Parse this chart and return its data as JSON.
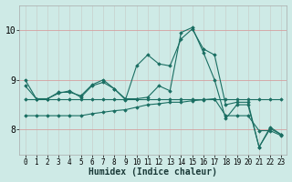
{
  "xlabel": "Humidex (Indice chaleur)",
  "background_color": "#ceeae6",
  "line_color": "#1a6e62",
  "grid_color": "#b8d8d4",
  "xlim": [
    -0.5,
    23.5
  ],
  "ylim": [
    7.5,
    10.5
  ],
  "yticks": [
    8,
    9,
    10
  ],
  "xticks": [
    0,
    1,
    2,
    3,
    4,
    5,
    6,
    7,
    8,
    9,
    10,
    11,
    12,
    13,
    14,
    15,
    16,
    17,
    18,
    19,
    20,
    21,
    22,
    23
  ],
  "series": [
    [
      9.0,
      8.62,
      8.62,
      8.75,
      8.75,
      8.68,
      8.9,
      9.0,
      8.82,
      8.62,
      8.62,
      8.65,
      8.88,
      8.78,
      9.95,
      10.05,
      9.55,
      9.0,
      8.22,
      8.5,
      8.5,
      7.65,
      8.05,
      7.9
    ],
    [
      8.88,
      8.62,
      8.62,
      8.73,
      8.78,
      8.65,
      8.88,
      8.95,
      8.82,
      8.6,
      9.28,
      9.5,
      9.32,
      9.28,
      9.82,
      10.02,
      9.62,
      9.5,
      8.5,
      8.55,
      8.55,
      7.65,
      8.02,
      7.9
    ],
    [
      8.28,
      8.28,
      8.28,
      8.28,
      8.28,
      8.28,
      8.32,
      8.35,
      8.38,
      8.4,
      8.45,
      8.5,
      8.52,
      8.55,
      8.55,
      8.58,
      8.6,
      8.62,
      8.28,
      8.28,
      8.28,
      7.98,
      7.98,
      7.88
    ],
    [
      8.62,
      8.62,
      8.62,
      8.62,
      8.62,
      8.62,
      8.62,
      8.62,
      8.62,
      8.62,
      8.62,
      8.62,
      8.62,
      8.62,
      8.62,
      8.62,
      8.62,
      8.62,
      8.62,
      8.62,
      8.62,
      8.62,
      8.62,
      8.62
    ]
  ]
}
